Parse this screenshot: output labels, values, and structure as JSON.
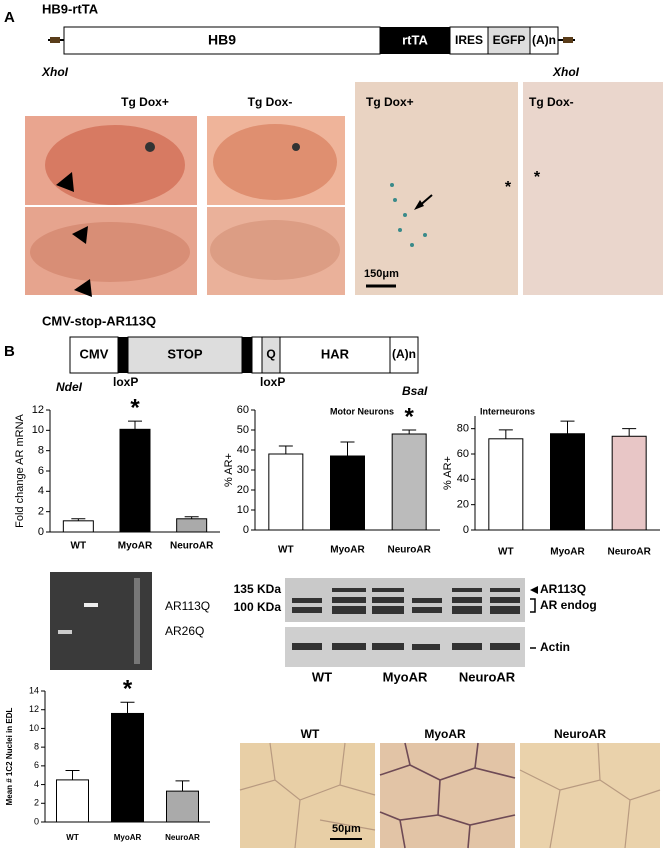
{
  "panel_a": {
    "label": "A",
    "construct": {
      "title": "HB9-rtTA",
      "elements": [
        "HB9",
        "rtTA",
        "IRES",
        "EGFP",
        "(A)n"
      ],
      "sites": [
        "XhoI",
        "XhoI"
      ]
    },
    "embryo_photos": {
      "columns": [
        "Tg Dox+",
        "Tg Dox-"
      ]
    },
    "spinal_sections": {
      "columns": [
        "Tg Dox+",
        "Tg Dox-"
      ],
      "scale_bar": "150μm",
      "markers": [
        "*",
        "*"
      ]
    }
  },
  "panel_b": {
    "label": "B",
    "construct": {
      "title": "CMV-stop-AR113Q",
      "elements": [
        "CMV",
        "STOP",
        "Q",
        "HAR",
        "(A)n"
      ],
      "sites": [
        "NdeI",
        "loxP",
        "loxP",
        "BsaI"
      ]
    },
    "gel": {
      "bands": [
        "AR113Q",
        "AR26Q"
      ]
    },
    "western": {
      "markers": [
        "135 KDa",
        "100 KDa"
      ],
      "bands": [
        "AR113Q",
        "AR endog",
        "Actin"
      ],
      "lanes": [
        "WT",
        "MyoAR",
        "NeuroAR"
      ]
    },
    "histology": {
      "panels": [
        "WT",
        "MyoAR",
        "NeuroAR"
      ],
      "scale_bar": "50μm"
    }
  },
  "chart_data": [
    {
      "type": "bar",
      "y_label": "Fold change AR mRNA",
      "categories": [
        "WT",
        "MyoAR",
        "NeuroAR"
      ],
      "values": [
        1.1,
        10.1,
        1.3
      ],
      "errors": [
        0.2,
        0.8,
        0.2
      ],
      "colors": [
        "#ffffff",
        "#000000",
        "#aaaaaa"
      ],
      "ylim": [
        0,
        12
      ],
      "yticks": [
        0,
        2,
        4,
        6,
        8,
        10,
        12
      ],
      "annotations": [
        {
          "text": "*",
          "x": "MyoAR"
        }
      ]
    },
    {
      "type": "bar",
      "title": "Motor Neurons",
      "y_label": "% AR+",
      "categories": [
        "WT",
        "MyoAR",
        "NeuroAR"
      ],
      "values": [
        38,
        37,
        48
      ],
      "errors": [
        4,
        7,
        2
      ],
      "colors": [
        "#ffffff",
        "#000000",
        "#bbbbbb"
      ],
      "ylim": [
        0,
        60
      ],
      "yticks": [
        0,
        10,
        20,
        30,
        40,
        50,
        60
      ],
      "annotations": [
        {
          "text": "*",
          "x": "NeuroAR"
        }
      ]
    },
    {
      "type": "bar",
      "title": "Interneurons",
      "y_label": "% AR+",
      "categories": [
        "WT",
        "MyoAR",
        "NeuroAR"
      ],
      "values": [
        72,
        76,
        74
      ],
      "errors": [
        7,
        10,
        6
      ],
      "colors": [
        "#ffffff",
        "#000000",
        "#e8c6c6"
      ],
      "ylim": [
        0,
        90
      ],
      "yticks": [
        0,
        20,
        40,
        60,
        80
      ]
    },
    {
      "type": "bar",
      "y_label": "Mean # 1C2 Nuclei in EDL",
      "categories": [
        "WT",
        "MyoAR",
        "NeuroAR"
      ],
      "values": [
        4.5,
        11.6,
        3.3
      ],
      "errors": [
        1.0,
        1.2,
        1.1
      ],
      "colors": [
        "#ffffff",
        "#000000",
        "#aaaaaa"
      ],
      "ylim": [
        0,
        14
      ],
      "yticks": [
        0,
        2,
        4,
        6,
        8,
        10,
        12,
        14
      ],
      "annotations": [
        {
          "text": "*",
          "x": "MyoAR"
        }
      ]
    }
  ]
}
